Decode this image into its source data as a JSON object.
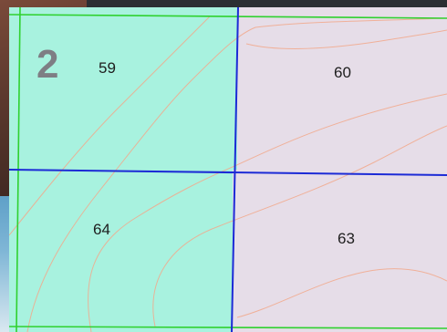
{
  "badge_number": "2",
  "cells": [
    {
      "id": "cell-59",
      "label": "59",
      "fill": "#a8f2df"
    },
    {
      "id": "cell-60",
      "label": "60",
      "fill": "#e6dde8"
    },
    {
      "id": "cell-64",
      "label": "64",
      "fill": "#a8f2df"
    },
    {
      "id": "cell-63",
      "label": "63",
      "fill": "#e6dde8"
    }
  ],
  "colors": {
    "grid_blue": "#1c2bd6",
    "border_green": "#2fd12f",
    "contour": "#f2a98c",
    "highlight_teal": "#a8f2df",
    "base_lavender": "#e6dde8"
  }
}
